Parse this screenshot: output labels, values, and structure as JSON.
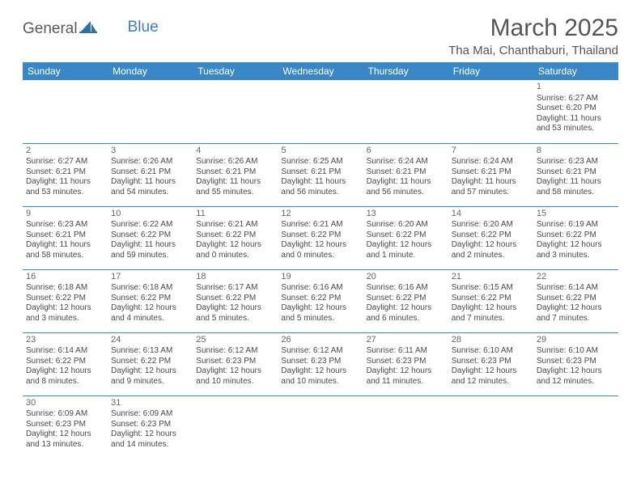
{
  "logo": {
    "part1": "General",
    "part2": "Blue"
  },
  "title": "March 2025",
  "location": "Tha Mai, Chanthaburi, Thailand",
  "colors": {
    "header_bg": "#3a87c7",
    "header_text": "#ffffff",
    "rule": "#3a87c7",
    "text": "#4a4a4a",
    "title_text": "#555555",
    "logo_blue": "#3a7fbf"
  },
  "table": {
    "columns": [
      "Sunday",
      "Monday",
      "Tuesday",
      "Wednesday",
      "Thursday",
      "Friday",
      "Saturday"
    ],
    "col_width_pct": 14.285,
    "header_fontsize": 12,
    "cell_fontsize": 10,
    "daynum_fontsize": 11
  },
  "weeks": [
    [
      null,
      null,
      null,
      null,
      null,
      null,
      {
        "n": "1",
        "sunrise": "6:27 AM",
        "sunset": "6:20 PM",
        "daylight": "11 hours and 53 minutes."
      }
    ],
    [
      {
        "n": "2",
        "sunrise": "6:27 AM",
        "sunset": "6:21 PM",
        "daylight": "11 hours and 53 minutes."
      },
      {
        "n": "3",
        "sunrise": "6:26 AM",
        "sunset": "6:21 PM",
        "daylight": "11 hours and 54 minutes."
      },
      {
        "n": "4",
        "sunrise": "6:26 AM",
        "sunset": "6:21 PM",
        "daylight": "11 hours and 55 minutes."
      },
      {
        "n": "5",
        "sunrise": "6:25 AM",
        "sunset": "6:21 PM",
        "daylight": "11 hours and 56 minutes."
      },
      {
        "n": "6",
        "sunrise": "6:24 AM",
        "sunset": "6:21 PM",
        "daylight": "11 hours and 56 minutes."
      },
      {
        "n": "7",
        "sunrise": "6:24 AM",
        "sunset": "6:21 PM",
        "daylight": "11 hours and 57 minutes."
      },
      {
        "n": "8",
        "sunrise": "6:23 AM",
        "sunset": "6:21 PM",
        "daylight": "11 hours and 58 minutes."
      }
    ],
    [
      {
        "n": "9",
        "sunrise": "6:23 AM",
        "sunset": "6:21 PM",
        "daylight": "11 hours and 58 minutes."
      },
      {
        "n": "10",
        "sunrise": "6:22 AM",
        "sunset": "6:22 PM",
        "daylight": "11 hours and 59 minutes."
      },
      {
        "n": "11",
        "sunrise": "6:21 AM",
        "sunset": "6:22 PM",
        "daylight": "12 hours and 0 minutes."
      },
      {
        "n": "12",
        "sunrise": "6:21 AM",
        "sunset": "6:22 PM",
        "daylight": "12 hours and 0 minutes."
      },
      {
        "n": "13",
        "sunrise": "6:20 AM",
        "sunset": "6:22 PM",
        "daylight": "12 hours and 1 minute."
      },
      {
        "n": "14",
        "sunrise": "6:20 AM",
        "sunset": "6:22 PM",
        "daylight": "12 hours and 2 minutes."
      },
      {
        "n": "15",
        "sunrise": "6:19 AM",
        "sunset": "6:22 PM",
        "daylight": "12 hours and 3 minutes."
      }
    ],
    [
      {
        "n": "16",
        "sunrise": "6:18 AM",
        "sunset": "6:22 PM",
        "daylight": "12 hours and 3 minutes."
      },
      {
        "n": "17",
        "sunrise": "6:18 AM",
        "sunset": "6:22 PM",
        "daylight": "12 hours and 4 minutes."
      },
      {
        "n": "18",
        "sunrise": "6:17 AM",
        "sunset": "6:22 PM",
        "daylight": "12 hours and 5 minutes."
      },
      {
        "n": "19",
        "sunrise": "6:16 AM",
        "sunset": "6:22 PM",
        "daylight": "12 hours and 5 minutes."
      },
      {
        "n": "20",
        "sunrise": "6:16 AM",
        "sunset": "6:22 PM",
        "daylight": "12 hours and 6 minutes."
      },
      {
        "n": "21",
        "sunrise": "6:15 AM",
        "sunset": "6:22 PM",
        "daylight": "12 hours and 7 minutes."
      },
      {
        "n": "22",
        "sunrise": "6:14 AM",
        "sunset": "6:22 PM",
        "daylight": "12 hours and 7 minutes."
      }
    ],
    [
      {
        "n": "23",
        "sunrise": "6:14 AM",
        "sunset": "6:22 PM",
        "daylight": "12 hours and 8 minutes."
      },
      {
        "n": "24",
        "sunrise": "6:13 AM",
        "sunset": "6:22 PM",
        "daylight": "12 hours and 9 minutes."
      },
      {
        "n": "25",
        "sunrise": "6:12 AM",
        "sunset": "6:23 PM",
        "daylight": "12 hours and 10 minutes."
      },
      {
        "n": "26",
        "sunrise": "6:12 AM",
        "sunset": "6:23 PM",
        "daylight": "12 hours and 10 minutes."
      },
      {
        "n": "27",
        "sunrise": "6:11 AM",
        "sunset": "6:23 PM",
        "daylight": "12 hours and 11 minutes."
      },
      {
        "n": "28",
        "sunrise": "6:10 AM",
        "sunset": "6:23 PM",
        "daylight": "12 hours and 12 minutes."
      },
      {
        "n": "29",
        "sunrise": "6:10 AM",
        "sunset": "6:23 PM",
        "daylight": "12 hours and 12 minutes."
      }
    ],
    [
      {
        "n": "30",
        "sunrise": "6:09 AM",
        "sunset": "6:23 PM",
        "daylight": "12 hours and 13 minutes."
      },
      {
        "n": "31",
        "sunrise": "6:09 AM",
        "sunset": "6:23 PM",
        "daylight": "12 hours and 14 minutes."
      },
      null,
      null,
      null,
      null,
      null
    ]
  ],
  "labels": {
    "sunrise": "Sunrise:",
    "sunset": "Sunset:",
    "daylight": "Daylight:"
  }
}
